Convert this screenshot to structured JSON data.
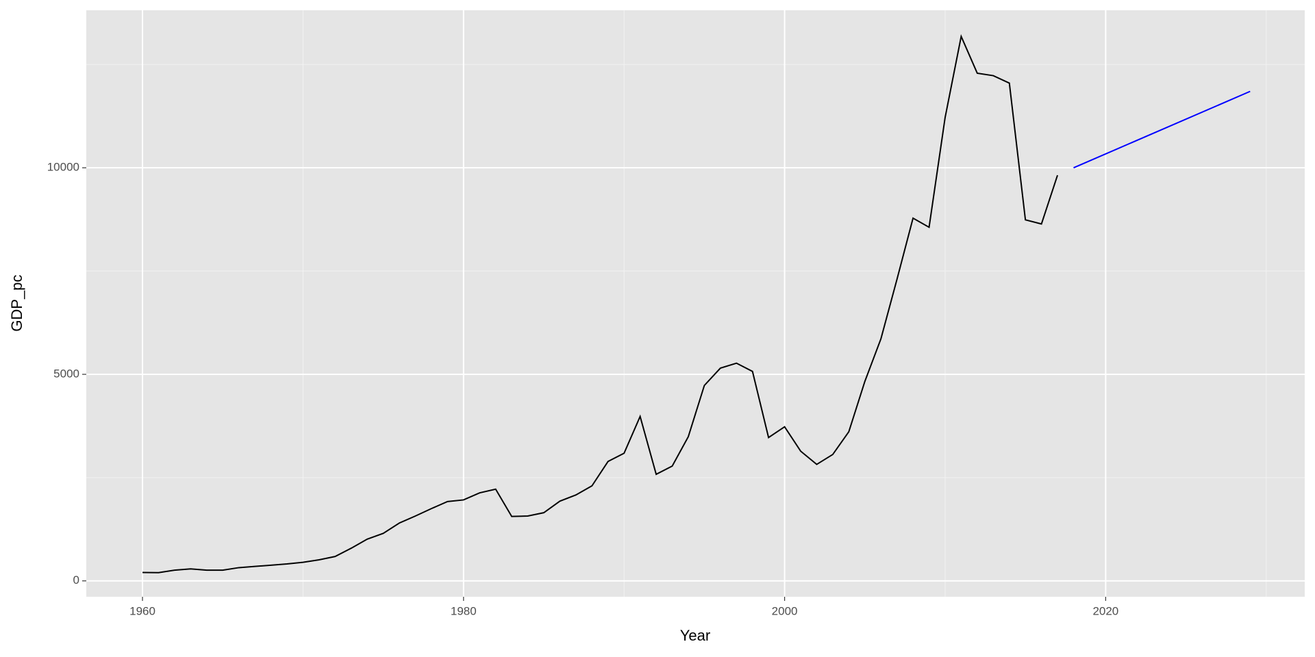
{
  "chart_data": {
    "type": "line",
    "x_label": "Year",
    "y_label": "GDP_pc",
    "xlim": [
      1956.5,
      2032.4
    ],
    "ylim": [
      -385,
      13813
    ],
    "xticks": [
      1960,
      1980,
      2000,
      2020
    ],
    "yticks": [
      0,
      5000,
      10000
    ],
    "x_minor_grid": [
      1970,
      1990,
      2010,
      2030
    ],
    "y_minor_grid": [
      2500,
      7500,
      12500
    ],
    "grid": true,
    "series": [
      {
        "color": "#000000",
        "x": [
          1960,
          1961,
          1962,
          1963,
          1964,
          1965,
          1966,
          1967,
          1968,
          1969,
          1970,
          1971,
          1972,
          1973,
          1974,
          1975,
          1976,
          1977,
          1978,
          1979,
          1980,
          1981,
          1982,
          1983,
          1984,
          1985,
          1986,
          1987,
          1988,
          1989,
          1990,
          1991,
          1992,
          1993,
          1994,
          1995,
          1996,
          1997,
          1998,
          1999,
          2000,
          2001,
          2002,
          2003,
          2004,
          2005,
          2006,
          2007,
          2008,
          2009,
          2010,
          2011,
          2012,
          2013,
          2014,
          2015,
          2016,
          2017
        ],
        "values": [
          203,
          200,
          260,
          290,
          260,
          260,
          320,
          350,
          380,
          410,
          450,
          510,
          590,
          790,
          1010,
          1150,
          1400,
          1570,
          1750,
          1920,
          1960,
          2130,
          2220,
          1560,
          1570,
          1650,
          1930,
          2080,
          2300,
          2890,
          3090,
          3980,
          2580,
          2780,
          3490,
          4730,
          5150,
          5270,
          5070,
          3470,
          3730,
          3140,
          2820,
          3060,
          3610,
          4830,
          5860,
          7300,
          8780,
          8560,
          11220,
          13180,
          12290,
          12230,
          12050,
          8740,
          8640,
          9820
        ]
      },
      {
        "color": "#0000ff",
        "x": [
          2018,
          2029
        ],
        "values": [
          10000,
          11850
        ]
      }
    ]
  }
}
